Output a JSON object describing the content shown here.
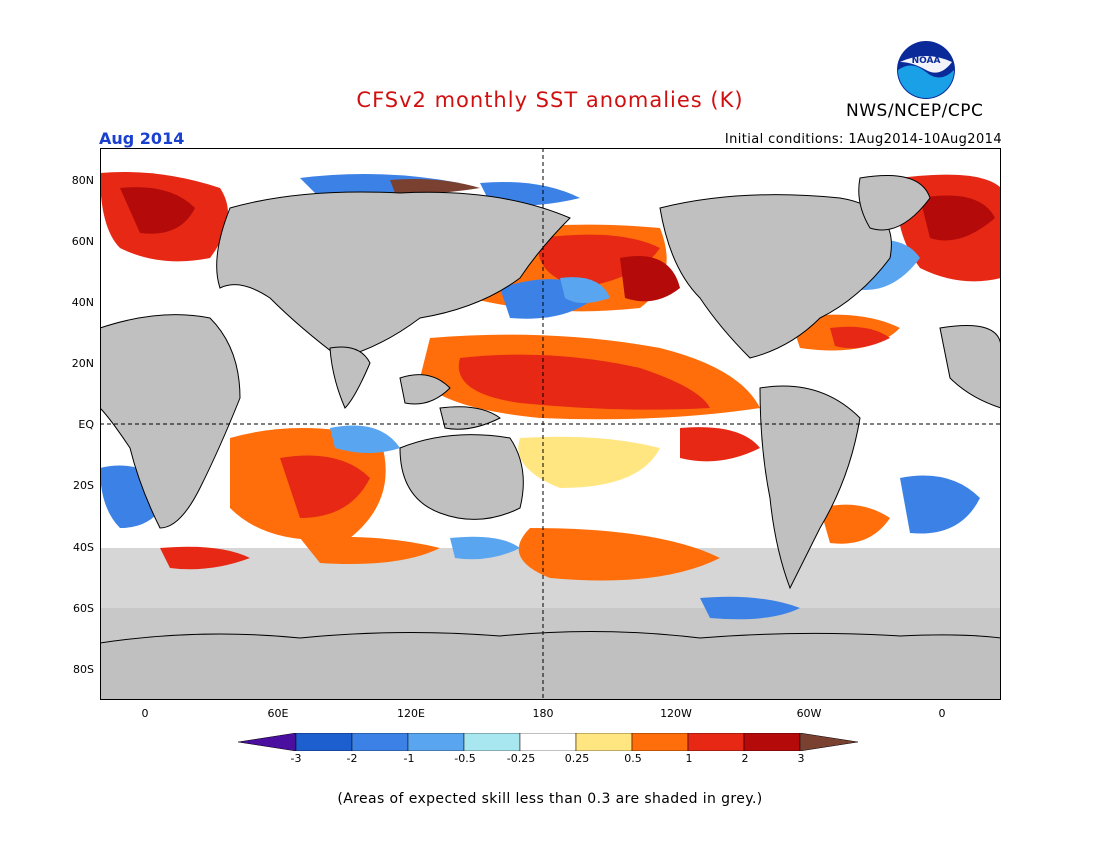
{
  "header": {
    "title": "CFSv2 monthly SST anomalies (K)",
    "org": "NWS/NCEP/CPC",
    "month": "Aug 2014",
    "init": "Initial conditions: 1Aug2014-10Aug2014"
  },
  "logo_text": "NOAA",
  "lat_labels": [
    "80N",
    "60N",
    "40N",
    "20N",
    "EQ",
    "20S",
    "40S",
    "60S",
    "80S"
  ],
  "lon_labels": [
    "0",
    "60E",
    "120E",
    "180",
    "120W",
    "60W",
    "0"
  ],
  "colorbar": {
    "labels": [
      "-3",
      "-2",
      "-1",
      "-0.5",
      "-0.25",
      "0.25",
      "0.5",
      "1",
      "2",
      "3"
    ],
    "colors": [
      "#4b0fa0",
      "#1e5fd0",
      "#3c82e6",
      "#5aa5f0",
      "#a8e6f0",
      "#ffffff",
      "#ffe680",
      "#ff6e0a",
      "#e62814",
      "#b40a0a",
      "#7a4030"
    ]
  },
  "footnote": "(Areas of expected skill less than 0.3 are shaded in grey.)",
  "colors": {
    "land": "#c0c0c0",
    "grey_skill": "#c8c8c8",
    "title": "#d01010",
    "month": "#1a40d0"
  }
}
